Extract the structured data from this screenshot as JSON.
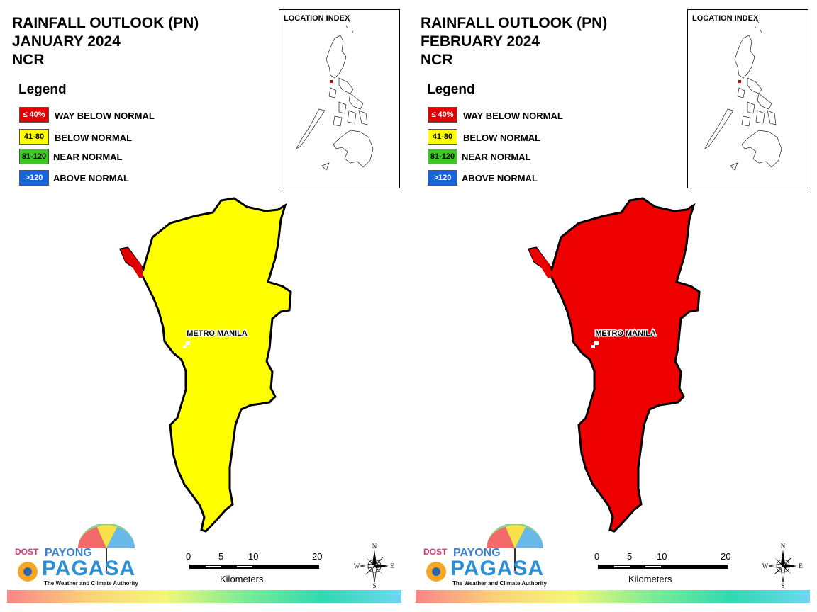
{
  "legend": {
    "title": "Legend",
    "items": [
      {
        "box_text": "≤ 40%",
        "label": "WAY BELOW NORMAL",
        "color": "#e00000",
        "text_color": "#ffffff"
      },
      {
        "box_text": "41-80",
        "label": "BELOW NORMAL",
        "color": "#ffff00",
        "text_color": "#000000"
      },
      {
        "box_text": "81-120",
        "label": "NEAR NORMAL",
        "color": "#3cc820",
        "text_color": "#000000"
      },
      {
        "box_text": ">120",
        "label": "ABOVE NORMAL",
        "color": "#1565d8",
        "text_color": "#ffffff"
      }
    ]
  },
  "location_index_title": "LOCATION INDEX",
  "map_label": "METRO MANILA",
  "scale": {
    "ticks": [
      "0",
      "5",
      "10",
      "20"
    ],
    "unit": "Kilometers"
  },
  "compass": {
    "n": "N",
    "s": "S",
    "e": "E",
    "w": "W"
  },
  "logo": {
    "dost": "DOST",
    "payong": "PAYONG",
    "pagasa": "PAGASA",
    "tagline": "The Weather and Climate Authority"
  },
  "panels": [
    {
      "title": [
        "RAINFALL OUTLOOK (PN)",
        "JANUARY 2024",
        "NCR"
      ],
      "fill_color": "#ffff00",
      "corner_color": "#e00000"
    },
    {
      "title": [
        "RAINFALL OUTLOOK (PN)",
        "FEBRUARY 2024",
        "NCR"
      ],
      "fill_color": "#ee0000",
      "corner_color": "#ee0000"
    }
  ]
}
